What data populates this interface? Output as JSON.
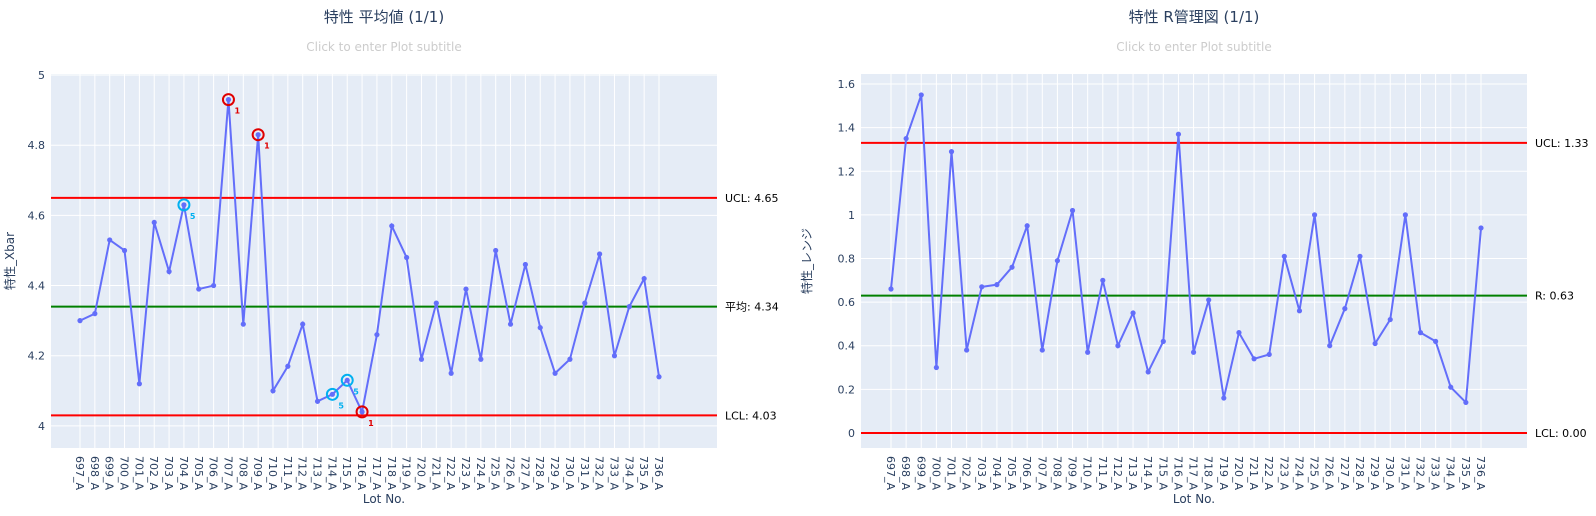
{
  "colors": {
    "series": "#636efa",
    "ucl": "#ff0000",
    "center": "#008000",
    "plot_bg": "#e5ecf6",
    "grid": "#ffffff",
    "rule1": "#e00000",
    "rule5": "#00b0f0"
  },
  "chart_data": [
    {
      "type": "line",
      "title": "特性 平均値 (1/1)",
      "subtitle": "Click to enter Plot subtitle",
      "xlabel": "Lot No.",
      "ylabel": "特性_Xbar",
      "ylim": [
        3.937,
        5.003
      ],
      "yticks": [
        4,
        4.2,
        4.4,
        4.6,
        4.8,
        5
      ],
      "ytick_labels": [
        "4",
        "4.2",
        "4.4",
        "4.6",
        "4.8",
        "5"
      ],
      "grid": true,
      "categories": [
        "697_A",
        "698_A",
        "699_A",
        "700_A",
        "701_A",
        "702_A",
        "703_A",
        "704_A",
        "705_A",
        "706_A",
        "707_A",
        "708_A",
        "709_A",
        "710_A",
        "711_A",
        "712_A",
        "713_A",
        "714_A",
        "715_A",
        "716_A",
        "717_A",
        "718_A",
        "719_A",
        "720_A",
        "721_A",
        "722_A",
        "723_A",
        "724_A",
        "725_A",
        "726_A",
        "727_A",
        "728_A",
        "729_A",
        "730_A",
        "731_A",
        "732_A",
        "733_A",
        "734_A",
        "735_A",
        "736_A"
      ],
      "values": [
        4.3,
        4.32,
        4.53,
        4.5,
        4.12,
        4.58,
        4.44,
        4.63,
        4.39,
        4.4,
        4.93,
        4.29,
        4.83,
        4.1,
        4.17,
        4.29,
        4.07,
        4.09,
        4.13,
        4.04,
        4.26,
        4.57,
        4.48,
        4.19,
        4.35,
        4.15,
        4.39,
        4.19,
        4.5,
        4.29,
        4.46,
        4.28,
        4.15,
        4.19,
        4.35,
        4.49,
        4.2,
        4.34,
        4.42,
        4.14
      ],
      "lines": [
        {
          "name": "UCL",
          "value": 4.65,
          "label": "UCL: 4.65",
          "kind": "ucl"
        },
        {
          "name": "平均",
          "value": 4.34,
          "label": "平均: 4.34",
          "kind": "center"
        },
        {
          "name": "LCL",
          "value": 4.03,
          "label": "LCL: 4.03",
          "kind": "ucl"
        }
      ],
      "annotations": [
        {
          "category": "704_A",
          "rule": "5",
          "kind": "rule5"
        },
        {
          "category": "707_A",
          "rule": "1",
          "kind": "rule1"
        },
        {
          "category": "709_A",
          "rule": "1",
          "kind": "rule1"
        },
        {
          "category": "714_A",
          "rule": "5",
          "kind": "rule5"
        },
        {
          "category": "715_A",
          "rule": "5",
          "kind": "rule5"
        },
        {
          "category": "716_A",
          "rule": "1",
          "kind": "rule1"
        }
      ]
    },
    {
      "type": "line",
      "title": "特性 R管理図 (1/1)",
      "subtitle": "Click to enter Plot subtitle",
      "xlabel": "Lot No.",
      "ylabel": "特性_レンジ",
      "ylim": [
        -0.069,
        1.646
      ],
      "yticks": [
        0,
        0.2,
        0.4,
        0.6,
        0.8,
        1,
        1.2,
        1.4,
        1.6
      ],
      "ytick_labels": [
        "0",
        "0.2",
        "0.4",
        "0.6",
        "0.8",
        "1",
        "1.2",
        "1.4",
        "1.6"
      ],
      "grid": true,
      "categories": [
        "697_A",
        "698_A",
        "699_A",
        "700_A",
        "701_A",
        "702_A",
        "703_A",
        "704_A",
        "705_A",
        "706_A",
        "707_A",
        "708_A",
        "709_A",
        "710_A",
        "711_A",
        "712_A",
        "713_A",
        "714_A",
        "715_A",
        "716_A",
        "717_A",
        "718_A",
        "719_A",
        "720_A",
        "721_A",
        "722_A",
        "723_A",
        "724_A",
        "725_A",
        "726_A",
        "727_A",
        "728_A",
        "729_A",
        "730_A",
        "731_A",
        "732_A",
        "733_A",
        "734_A",
        "735_A",
        "736_A"
      ],
      "values": [
        0.66,
        1.35,
        1.55,
        0.3,
        1.29,
        0.38,
        0.67,
        0.68,
        0.76,
        0.95,
        0.38,
        0.79,
        1.02,
        0.37,
        0.7,
        0.4,
        0.55,
        0.28,
        0.42,
        1.37,
        0.37,
        0.61,
        0.16,
        0.46,
        0.34,
        0.36,
        0.81,
        0.56,
        1.0,
        0.4,
        0.57,
        0.81,
        0.41,
        0.52,
        1.0,
        0.46,
        0.42,
        0.21,
        0.14,
        0.94
      ],
      "lines": [
        {
          "name": "UCL",
          "value": 1.33,
          "label": "UCL: 1.33",
          "kind": "ucl"
        },
        {
          "name": "R",
          "value": 0.63,
          "label": "R: 0.63",
          "kind": "center"
        },
        {
          "name": "LCL",
          "value": 0.0,
          "label": "LCL: 0.00",
          "kind": "ucl"
        }
      ],
      "annotations": []
    }
  ]
}
